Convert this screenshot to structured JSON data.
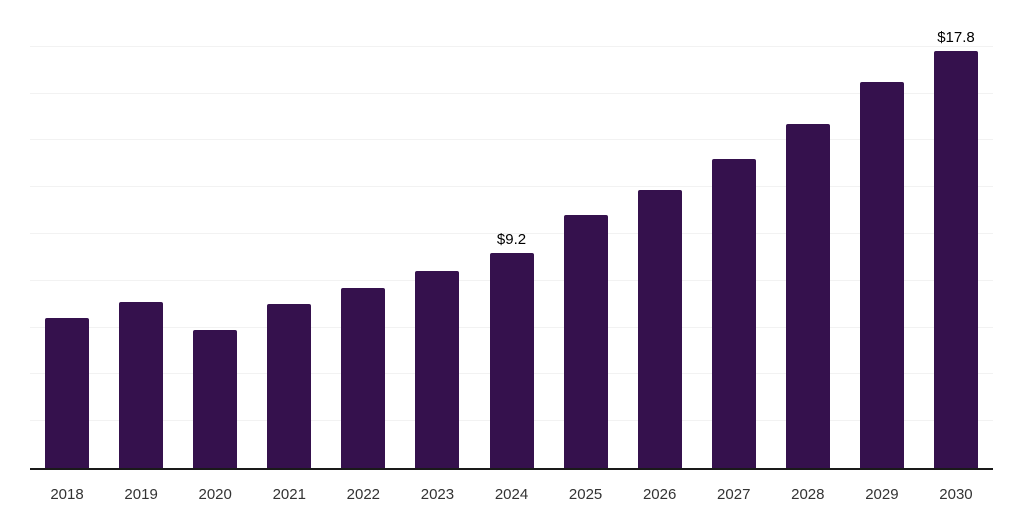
{
  "chart_data": {
    "type": "bar",
    "title": "",
    "xlabel": "",
    "ylabel": "",
    "categories": [
      "2018",
      "2019",
      "2020",
      "2021",
      "2022",
      "2023",
      "2024",
      "2025",
      "2026",
      "2027",
      "2028",
      "2029",
      "2030"
    ],
    "values": [
      6.4,
      7.1,
      5.9,
      7.0,
      7.7,
      8.4,
      9.2,
      10.8,
      11.9,
      13.2,
      14.7,
      16.5,
      17.8
    ],
    "data_labels": [
      "",
      "",
      "",
      "",
      "",
      "",
      "$9.2",
      "",
      "",
      "",
      "",
      "",
      "$17.8"
    ],
    "ylim": [
      0,
      20
    ],
    "grid_step": 2,
    "grid": "horizontal-only",
    "y_tick_labels_visible": false,
    "legend_position": "none",
    "colors": {
      "bar": "#35114d",
      "axis_line": "#1a1a1a",
      "gridline": "#f2f2f2",
      "tick_text": "#333333",
      "data_label_text": "#000000",
      "background": "#ffffff"
    }
  }
}
